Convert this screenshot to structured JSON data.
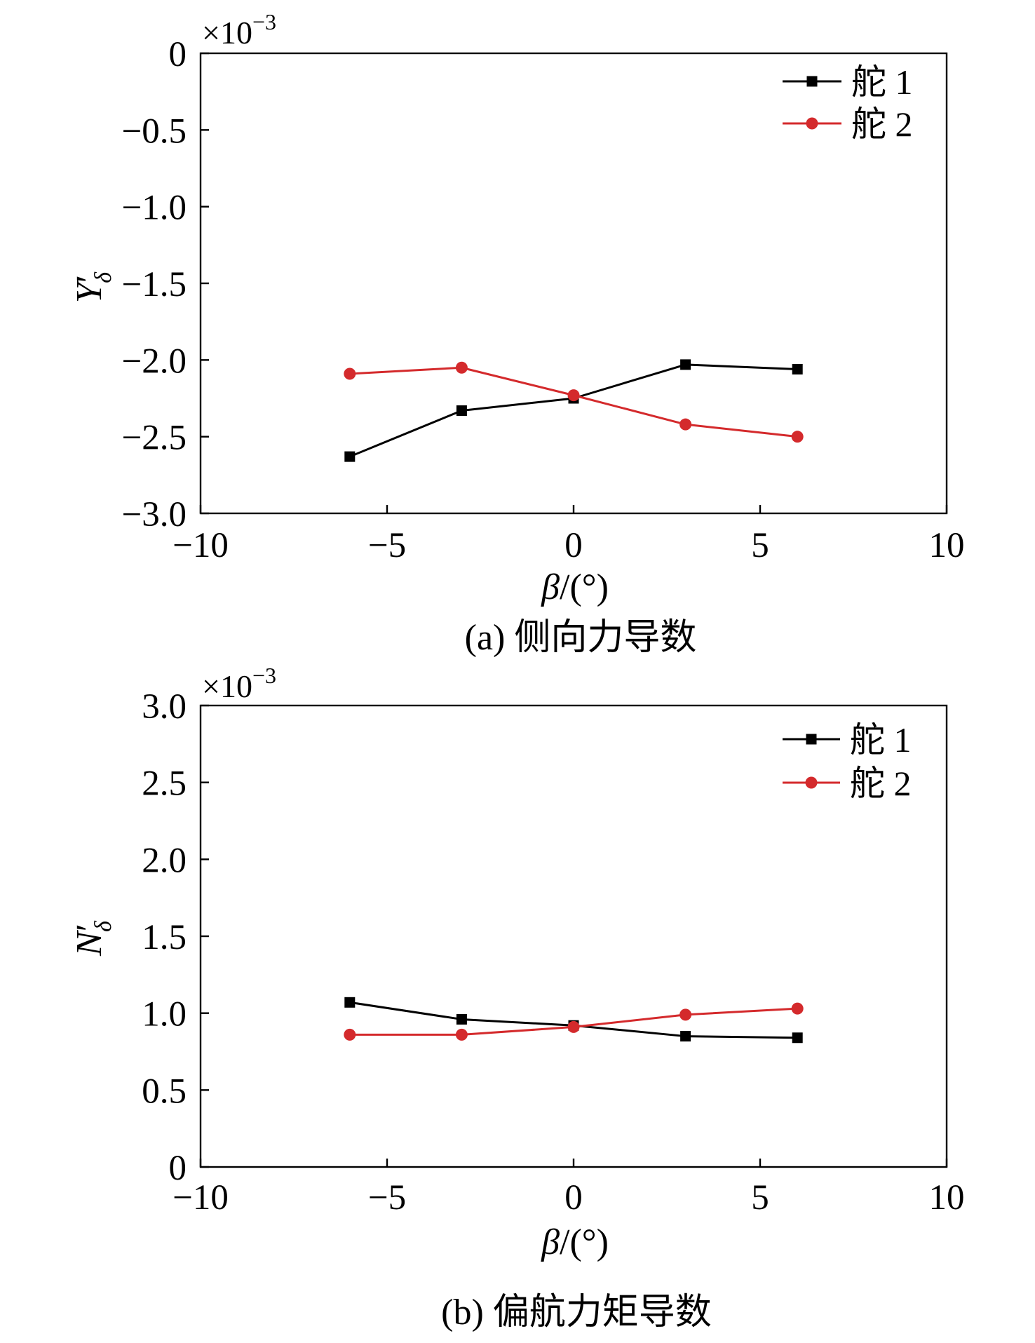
{
  "chart_data": [
    {
      "type": "line",
      "caption": "(a) 侧向力导数",
      "multiplier": {
        "base": "×10",
        "exponent": "−3"
      },
      "xlabel": {
        "symbol": "β",
        "unit": "/(°)"
      },
      "ylabel": {
        "symbol": "Y",
        "prime": "′",
        "subscript": "δ"
      },
      "xlim": [
        -10,
        10
      ],
      "ylim": [
        -3.0,
        0
      ],
      "xticks": [
        -10,
        -5,
        0,
        5,
        10
      ],
      "xtick_labels": [
        "−10",
        "−5",
        "0",
        "5",
        "10"
      ],
      "yticks": [
        -3.0,
        -2.5,
        -2.0,
        -1.5,
        -1.0,
        -0.5,
        0
      ],
      "ytick_labels": [
        "−3.0",
        "−2.5",
        "−2.0",
        "−1.5",
        "−1.0",
        "−0.5",
        "0"
      ],
      "grid": false,
      "legend_position": "top-right",
      "x": [
        -6,
        -3,
        0,
        3,
        6
      ],
      "series": [
        {
          "name": "舵 1",
          "marker": "square",
          "color": "#000000",
          "values": [
            -2.63,
            -2.33,
            -2.25,
            -2.03,
            -2.06
          ]
        },
        {
          "name": "舵 2",
          "marker": "circle",
          "color": "#d42a2c",
          "values": [
            -2.09,
            -2.05,
            -2.23,
            -2.42,
            -2.5
          ]
        }
      ]
    },
    {
      "type": "line",
      "caption": "(b) 偏航力矩导数",
      "multiplier": {
        "base": "×10",
        "exponent": "−3"
      },
      "xlabel": {
        "symbol": "β",
        "unit": "/(°)"
      },
      "ylabel": {
        "symbol": "N",
        "prime": "′",
        "subscript": "δ"
      },
      "xlim": [
        -10,
        10
      ],
      "ylim": [
        0,
        3.0
      ],
      "xticks": [
        -10,
        -5,
        0,
        5,
        10
      ],
      "xtick_labels": [
        "−10",
        "−5",
        "0",
        "5",
        "10"
      ],
      "yticks": [
        0,
        0.5,
        1.0,
        1.5,
        2.0,
        2.5,
        3.0
      ],
      "ytick_labels": [
        "0",
        "0.5",
        "1.0",
        "1.5",
        "2.0",
        "2.5",
        "3.0"
      ],
      "grid": false,
      "legend_position": "top-right",
      "x": [
        -6,
        -3,
        0,
        3,
        6
      ],
      "series": [
        {
          "name": "舵 1",
          "marker": "square",
          "color": "#000000",
          "values": [
            1.07,
            0.96,
            0.92,
            0.85,
            0.84
          ]
        },
        {
          "name": "舵 2",
          "marker": "circle",
          "color": "#d42a2c",
          "values": [
            0.86,
            0.86,
            0.91,
            0.99,
            1.03
          ]
        }
      ]
    }
  ]
}
